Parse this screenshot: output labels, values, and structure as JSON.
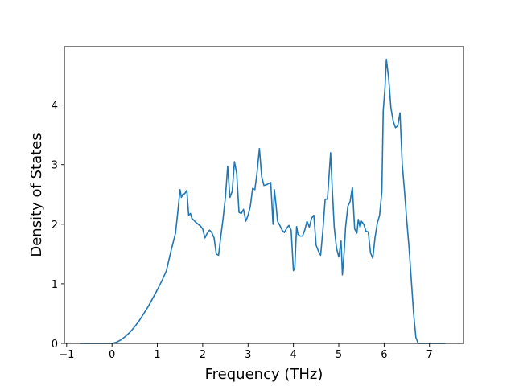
{
  "chart_data": {
    "type": "line",
    "title": "",
    "xlabel": "Frequency (THz)",
    "ylabel": "Density of States",
    "xlim": [
      -1.05,
      7.75
    ],
    "ylim": [
      0,
      4.98
    ],
    "xticks": [
      -1,
      0,
      1,
      2,
      3,
      4,
      5,
      6,
      7
    ],
    "xtick_labels": [
      "−1",
      "0",
      "1",
      "2",
      "3",
      "4",
      "5",
      "6",
      "7"
    ],
    "yticks": [
      0,
      1,
      2,
      3,
      4
    ],
    "ytick_labels": [
      "0",
      "1",
      "2",
      "3",
      "4"
    ],
    "grid": false,
    "legend": null,
    "line_color": "#1f77b4",
    "series": [
      {
        "x": [
          -0.7,
          -0.3,
          0.0,
          0.1,
          0.2,
          0.3,
          0.4,
          0.5,
          0.6,
          0.7,
          0.8,
          0.9,
          1.0,
          1.1,
          1.2,
          1.3,
          1.4,
          1.45,
          1.5,
          1.53,
          1.56,
          1.58,
          1.61,
          1.65,
          1.69,
          1.73,
          1.76,
          1.8,
          1.85,
          1.9,
          1.95,
          2.0,
          2.05,
          2.1,
          2.15,
          2.2,
          2.25,
          2.3,
          2.35,
          2.4,
          2.45,
          2.5,
          2.55,
          2.6,
          2.65,
          2.7,
          2.75,
          2.8,
          2.85,
          2.9,
          2.95,
          3.0,
          3.05,
          3.1,
          3.15,
          3.2,
          3.25,
          3.3,
          3.35,
          3.4,
          3.45,
          3.5,
          3.55,
          3.58,
          3.62,
          3.65,
          3.7,
          3.75,
          3.8,
          3.85,
          3.9,
          3.95,
          4.0,
          4.03,
          4.07,
          4.1,
          4.15,
          4.2,
          4.25,
          4.3,
          4.35,
          4.4,
          4.45,
          4.5,
          4.55,
          4.6,
          4.65,
          4.7,
          4.75,
          4.78,
          4.82,
          4.85,
          4.9,
          4.95,
          5.0,
          5.05,
          5.08,
          5.12,
          5.15,
          5.2,
          5.25,
          5.3,
          5.35,
          5.4,
          5.43,
          5.47,
          5.5,
          5.55,
          5.6,
          5.65,
          5.7,
          5.75,
          5.8,
          5.85,
          5.9,
          5.95,
          5.98,
          6.02,
          6.05,
          6.1,
          6.15,
          6.2,
          6.25,
          6.3,
          6.35,
          6.4,
          6.45,
          6.5,
          6.55,
          6.6,
          6.65,
          6.7,
          6.75,
          6.8,
          7.0,
          7.35
        ],
        "y": [
          0,
          0,
          0,
          0.02,
          0.06,
          0.12,
          0.19,
          0.28,
          0.38,
          0.5,
          0.62,
          0.76,
          0.9,
          1.05,
          1.22,
          1.55,
          1.85,
          2.2,
          2.58,
          2.45,
          2.5,
          2.5,
          2.52,
          2.57,
          2.15,
          2.18,
          2.1,
          2.07,
          2.03,
          2.0,
          1.97,
          1.92,
          1.77,
          1.85,
          1.9,
          1.86,
          1.77,
          1.5,
          1.48,
          1.8,
          2.1,
          2.45,
          2.97,
          2.45,
          2.55,
          3.05,
          2.85,
          2.2,
          2.18,
          2.25,
          2.05,
          2.15,
          2.3,
          2.6,
          2.58,
          2.88,
          3.27,
          2.8,
          2.65,
          2.66,
          2.68,
          2.7,
          2.0,
          2.58,
          2.3,
          2.05,
          1.98,
          1.9,
          1.86,
          1.93,
          1.98,
          1.9,
          1.22,
          1.27,
          1.96,
          1.83,
          1.8,
          1.8,
          1.9,
          2.05,
          1.95,
          2.1,
          2.15,
          1.65,
          1.55,
          1.48,
          1.9,
          2.42,
          2.42,
          2.75,
          3.2,
          2.7,
          1.95,
          1.6,
          1.45,
          1.72,
          1.15,
          1.55,
          1.95,
          2.3,
          2.38,
          2.62,
          1.92,
          1.85,
          2.08,
          1.95,
          2.05,
          2.0,
          1.88,
          1.87,
          1.52,
          1.43,
          1.78,
          2.02,
          2.15,
          2.55,
          3.9,
          4.3,
          4.77,
          4.45,
          3.95,
          3.73,
          3.62,
          3.65,
          3.87,
          3.0,
          2.55,
          2.05,
          1.6,
          1.05,
          0.5,
          0.1,
          0,
          0,
          0,
          0
        ]
      }
    ]
  }
}
